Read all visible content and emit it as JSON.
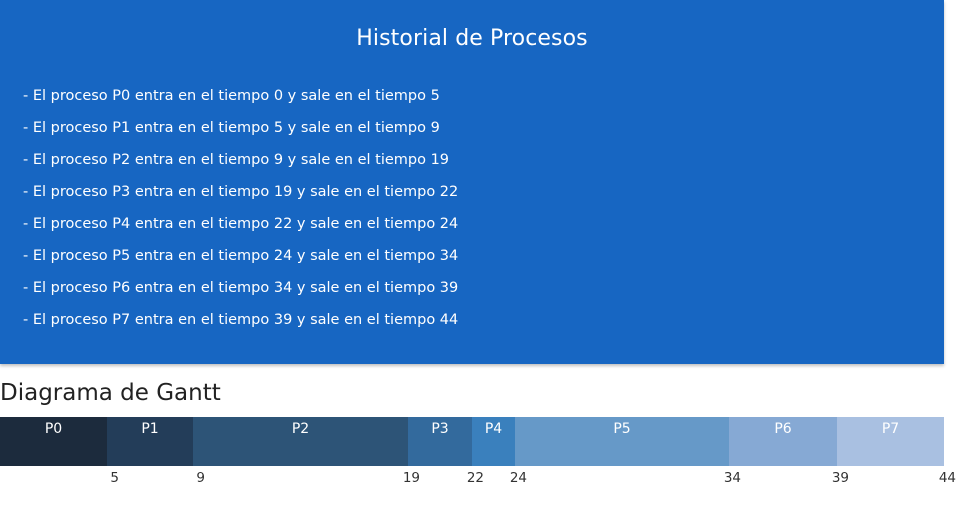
{
  "history": {
    "title": "Historial de Procesos",
    "entries": [
      "- El proceso P0 entra en el tiempo 0 y sale en el tiempo 5",
      "- El proceso P1 entra en el tiempo 5 y sale en el tiempo 9",
      "- El proceso P2 entra en el tiempo 9 y sale en el tiempo 19",
      "- El proceso P3 entra en el tiempo 19 y sale en el tiempo 22",
      "- El proceso P4 entra en el tiempo 22 y sale en el tiempo 24",
      "- El proceso P5 entra en el tiempo 24 y sale en el tiempo 34",
      "- El proceso P6 entra en el tiempo 34 y sale en el tiempo 39",
      "- El proceso P7 entra en el tiempo 39 y sale en el tiempo 44"
    ]
  },
  "gantt": {
    "title": "Diagrama de Gantt",
    "segments": [
      {
        "label": "P0",
        "start": 0,
        "end": 5,
        "color": "#1c2b3d"
      },
      {
        "label": "P1",
        "start": 5,
        "end": 9,
        "color": "#233d59"
      },
      {
        "label": "P2",
        "start": 9,
        "end": 19,
        "color": "#2d5477"
      },
      {
        "label": "P3",
        "start": 19,
        "end": 22,
        "color": "#336a9d"
      },
      {
        "label": "P4",
        "start": 22,
        "end": 24,
        "color": "#3a80bd"
      },
      {
        "label": "P5",
        "start": 24,
        "end": 34,
        "color": "#6699c8"
      },
      {
        "label": "P6",
        "start": 34,
        "end": 39,
        "color": "#86a9d4"
      },
      {
        "label": "P7",
        "start": 39,
        "end": 44,
        "color": "#a9c0e1"
      }
    ],
    "ticks": [
      "5",
      "9",
      "19",
      "22",
      "24",
      "34",
      "39",
      "44"
    ]
  }
}
